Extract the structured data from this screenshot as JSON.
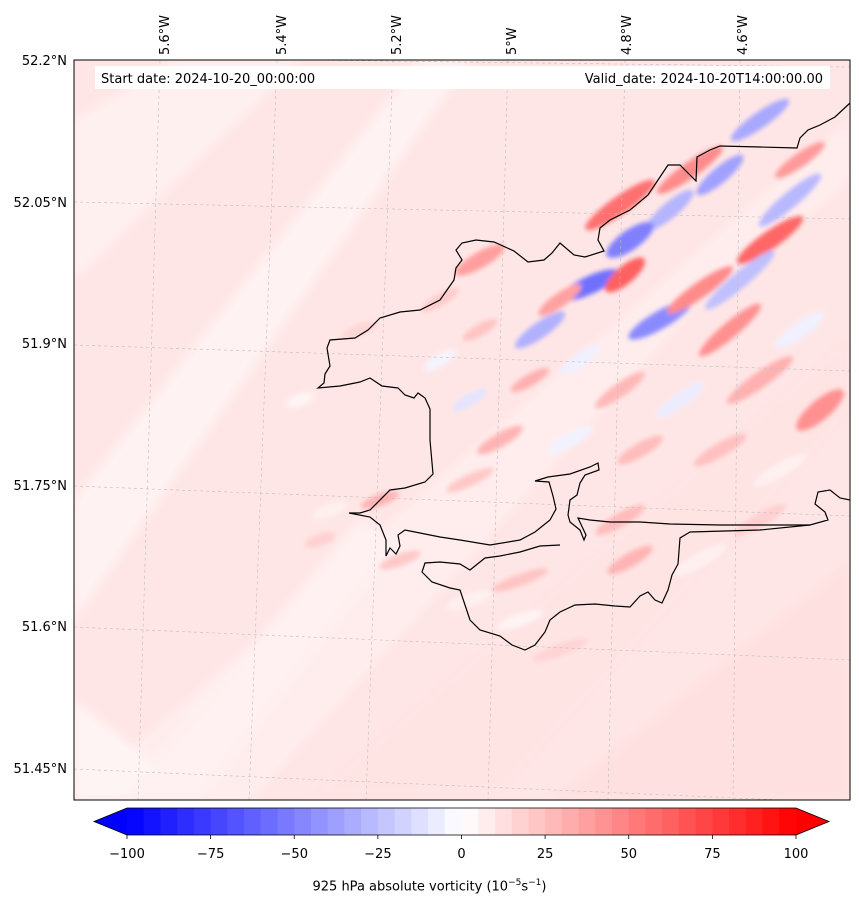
{
  "header": {
    "start_date": "Start date: 2024-10-20_00:00:00",
    "valid_date": "Valid_date: 2024-10-20T14:00:00.00"
  },
  "lon_ticks": [
    "5.6°W",
    "5.4°W",
    "5.2°W",
    "5°W",
    "4.8°W",
    "4.6°W"
  ],
  "lat_ticks": [
    "52.2°N",
    "52.05°N",
    "51.9°N",
    "51.75°N",
    "51.6°N",
    "51.45°N"
  ],
  "colorbar": {
    "tick_labels": [
      "−100",
      "−75",
      "−50",
      "−25",
      "0",
      "25",
      "50",
      "75",
      "100"
    ],
    "title_prefix": "925 hPa absolute vorticity (10",
    "title_exp1": "−5",
    "title_mid": "s",
    "title_exp2": "−1",
    "title_suffix": ")",
    "min": -100,
    "max": 100,
    "levels": 40
  },
  "colors": {
    "negative_max": "#0000ff",
    "neutral": "#ffffff",
    "positive_max": "#ff0000",
    "coast": "#000000",
    "grid": "#b0b0b0"
  }
}
